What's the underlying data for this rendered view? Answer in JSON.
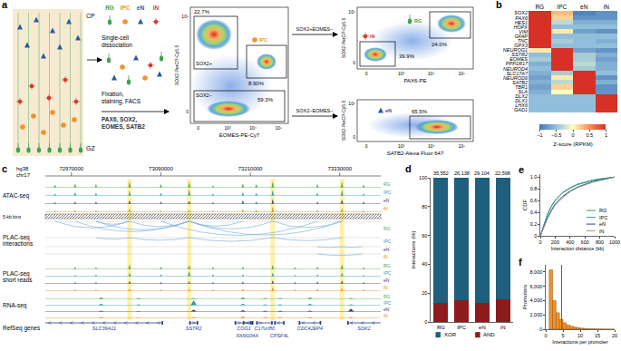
{
  "panel_a": {
    "letter": "a",
    "tissue_labels": [
      "CP",
      "GZ"
    ],
    "cell_types": [
      {
        "name": "RG",
        "color": "#3fa34d"
      },
      {
        "name": "IPC",
        "color": "#f0932b"
      },
      {
        "name": "eN",
        "color": "#2c5aa0"
      },
      {
        "name": "iN",
        "color": "#d63a2f"
      }
    ],
    "steps": [
      "Single-cell dissociation",
      "Fixation, staining, FACS",
      "PAX6, SOX2, EOMES, SATB2"
    ],
    "facs": [
      {
        "x_label": "EOMES-PE-Cy7",
        "y_label": "SOX2-PerCP-Cy5.5",
        "xticks": [
          "0",
          "10³",
          "10⁴",
          "10⁵"
        ],
        "yticks": [
          "0",
          "10⁵"
        ],
        "gates": [
          {
            "label": "22.7%",
            "population": "SOX2+"
          },
          {
            "label": "8.90%",
            "cell": "IPC"
          },
          {
            "label": "59.3%",
            "population": "SOX2−"
          }
        ]
      },
      {
        "gating": "SOX2+EOMES−",
        "x_label": "PAX6-PE",
        "y_label": "SOX2-PerCP-Cy5.5",
        "xticks": [
          "0",
          "10³",
          "10⁴",
          "10⁵"
        ],
        "yticks": [
          "0",
          "10⁵"
        ],
        "gates": [
          {
            "label": "24.0%",
            "cell": "RG"
          },
          {
            "label": "39.9%",
            "cell": "iN"
          }
        ]
      },
      {
        "gating": "SOX2−EOMES−",
        "x_label": "SATB2-Alexa Fluor 647",
        "y_label": "SOX2-PerCP-Cy5.5",
        "xticks": [
          "0",
          "10³",
          "10⁴",
          "10⁵"
        ],
        "yticks": [
          "0",
          "10⁵"
        ],
        "gates": [
          {
            "label": "65.5%",
            "cell": "eN"
          }
        ]
      }
    ]
  },
  "panel_c": {
    "letter": "c",
    "genome": "hg38",
    "chrom": "chr17",
    "xlim": [
      72935000,
      73385000
    ],
    "xticks": [
      72970000,
      73090000,
      73210000,
      73330000
    ],
    "cell_types": [
      {
        "name": "RG",
        "color": "#4aa84a"
      },
      {
        "name": "IPC",
        "color": "#2a9db5"
      },
      {
        "name": "eN",
        "color": "#34427e"
      },
      {
        "name": "iN",
        "color": "#e88a2c"
      }
    ],
    "highlights": [
      [
        73045000,
        73051000
      ],
      [
        73125000,
        73131000
      ],
      [
        73237000,
        73243000
      ],
      [
        73330000,
        73336000
      ]
    ],
    "atac": {
      "label": "ATAC-seq",
      "positions": [
        72948000,
        72975000,
        73003000,
        73048000,
        73090000,
        73128000,
        73160000,
        73200000,
        73218000,
        73240000,
        73300000,
        73333000,
        73362000
      ],
      "values": [
        [
          0.4,
          0.6,
          0.5,
          0.9,
          0.5,
          0.8,
          0.3,
          0.6,
          0.5,
          0.9,
          0.5,
          0.9,
          0.4
        ],
        [
          0.3,
          0.5,
          0.4,
          0.7,
          0.4,
          0.9,
          0.3,
          0.5,
          0.4,
          0.8,
          0.4,
          0.8,
          0.3
        ],
        [
          0.2,
          0.3,
          0.3,
          0.5,
          0.3,
          0.4,
          0.2,
          0.5,
          0.3,
          0.7,
          0.3,
          0.6,
          0.3
        ],
        [
          0.2,
          0.3,
          0.2,
          0.5,
          0.2,
          0.3,
          0.2,
          0.4,
          0.3,
          0.8,
          0.3,
          0.6,
          0.2
        ]
      ]
    },
    "bins_label": "5-kb bins",
    "interactions": {
      "label": "PLAC-seq interactions",
      "arcs": [
        [
          [
            72975000,
            73128000
          ],
          [
            73003000,
            73128000
          ],
          [
            73048000,
            73128000
          ],
          [
            73128000,
            73200000
          ],
          [
            73128000,
            73240000
          ],
          [
            73128000,
            73333000
          ],
          [
            72948000,
            73048000
          ],
          [
            73240000,
            73333000
          ],
          [
            73090000,
            73300000
          ],
          [
            73003000,
            73048000
          ]
        ],
        [
          [
            73048000,
            73128000
          ],
          [
            73128000,
            73240000
          ],
          [
            73240000,
            73333000
          ],
          [
            73003000,
            73048000
          ]
        ],
        [
          [
            73300000,
            73333000
          ],
          [
            73333000,
            73360000
          ]
        ],
        [
          [
            73300000,
            73360000
          ]
        ]
      ]
    },
    "short_reads": {
      "label": "PLAC-seq short reads",
      "positions": [
        72975000,
        73003000,
        73048000,
        73090000,
        73128000,
        73160000,
        73200000,
        73240000,
        73270000,
        73300000,
        73333000,
        73362000
      ],
      "values": [
        [
          0.3,
          0.3,
          0.8,
          0.4,
          0.7,
          0.3,
          0.4,
          0.7,
          0.3,
          0.4,
          0.8,
          0.3
        ],
        [
          0.2,
          0.3,
          0.6,
          0.3,
          0.9,
          0.3,
          0.3,
          0.6,
          0.2,
          0.3,
          0.6,
          0.2
        ],
        [
          0.2,
          0.2,
          0.4,
          0.2,
          0.3,
          0.2,
          0.3,
          0.5,
          0.2,
          0.3,
          0.5,
          0.2
        ],
        [
          0.2,
          0.2,
          0.3,
          0.2,
          0.3,
          0.2,
          0.3,
          0.6,
          0.2,
          0.3,
          0.5,
          0.2
        ]
      ]
    },
    "rna": {
      "label": "RNA-seq",
      "positions": [
        73010000,
        73060000,
        73134000,
        73200000,
        73230000,
        73250000,
        73290000,
        73345000
      ],
      "values": [
        [
          0.3,
          0.2,
          0.2,
          0.3,
          0.2,
          0.2,
          0.3,
          0.2
        ],
        [
          0.3,
          0.2,
          1.0,
          0.3,
          0.2,
          0.2,
          0.3,
          0.2
        ],
        [
          0.2,
          0.1,
          0.4,
          0.3,
          0.2,
          0.2,
          0.2,
          0.6
        ],
        [
          0.2,
          0.1,
          0.2,
          0.3,
          0.2,
          0.2,
          0.2,
          0.2
        ]
      ]
    },
    "genes": {
      "label": "RefSeq genes",
      "items": [
        {
          "name": "SLC39A11",
          "start": 72642000,
          "end": 73093000,
          "strand": "-"
        },
        {
          "name": "SSTR2",
          "start": 73128000,
          "end": 73140000,
          "strand": "+"
        },
        {
          "name": "COG1",
          "start": 73189000,
          "end": 73214000,
          "strand": "+"
        },
        {
          "name": "FAM104A",
          "start": 73200000,
          "end": 73212000,
          "strand": "-"
        },
        {
          "name": "C17orf80",
          "start": 73218000,
          "end": 73240000,
          "strand": "+"
        },
        {
          "name": "CPSF4L",
          "start": 73242000,
          "end": 73256000,
          "strand": "-"
        },
        {
          "name": "CDC42EP4",
          "start": 73275000,
          "end": 73305000,
          "strand": "-"
        },
        {
          "name": "SDK2",
          "start": 73340000,
          "end": 73640000,
          "strand": "-"
        }
      ]
    }
  },
  "chart_data": [
    {
      "panel": "b",
      "type": "heatmap",
      "x": [
        "RG",
        "IPC",
        "eN",
        "iN"
      ],
      "y": [
        "SOX2",
        "PAX6",
        "HES1",
        "HOPX",
        "VIM",
        "GFAP",
        "TNC",
        "GPX3",
        "NEUROG1",
        "SSTR2",
        "EOMES",
        "PPP1R17",
        "NEUROD4",
        "SLC17A7",
        "NEUROD6",
        "SATB2",
        "TBR1",
        "SLA",
        "DLX2",
        "DLX1",
        "LHX6",
        "GAD1"
      ],
      "z": [
        [
          1.4,
          0.3,
          -0.9,
          -0.8
        ],
        [
          1.4,
          0.2,
          -0.8,
          -0.8
        ],
        [
          1.5,
          -0.3,
          -0.6,
          -0.6
        ],
        [
          1.5,
          -0.5,
          -0.5,
          -0.5
        ],
        [
          1.4,
          0.1,
          -0.7,
          -0.8
        ],
        [
          1.5,
          -0.5,
          -0.5,
          -0.5
        ],
        [
          1.5,
          -0.4,
          -0.5,
          -0.6
        ],
        [
          1.5,
          -0.5,
          -0.5,
          -0.5
        ],
        [
          0.1,
          1.4,
          -0.7,
          -0.8
        ],
        [
          -0.5,
          1.5,
          -0.4,
          -0.6
        ],
        [
          -0.4,
          1.5,
          -0.4,
          -0.7
        ],
        [
          -0.6,
          1.5,
          -0.3,
          -0.6
        ],
        [
          -0.5,
          1.5,
          -0.4,
          -0.6
        ],
        [
          -0.6,
          -0.4,
          1.5,
          -0.5
        ],
        [
          -0.7,
          0.1,
          1.4,
          -0.8
        ],
        [
          -0.6,
          -0.3,
          1.5,
          -0.6
        ],
        [
          -0.7,
          0.2,
          1.3,
          -0.8
        ],
        [
          -0.6,
          0.0,
          1.4,
          -0.8
        ],
        [
          -0.5,
          -0.5,
          -0.5,
          1.5
        ],
        [
          -0.5,
          -0.5,
          -0.5,
          1.5
        ],
        [
          -0.5,
          -0.5,
          -0.5,
          1.5
        ],
        [
          -0.5,
          -0.5,
          -0.5,
          1.5
        ]
      ],
      "colorbar": {
        "title": "Z-score (RPKM)",
        "range": [
          -1,
          1
        ],
        "ticks": [
          {
            "value": -1,
            "label": "−1"
          },
          {
            "value": -0.5,
            "label": "−0.5"
          },
          0,
          0.5,
          1
        ]
      }
    },
    {
      "panel": "d",
      "type": "bar",
      "stacked": true,
      "categories": [
        "RG",
        "IPC",
        "eN",
        "iN"
      ],
      "series": [
        {
          "name": "AND",
          "color": "#8e1b1b",
          "values": [
            13,
            15,
            13,
            16
          ]
        },
        {
          "name": "XOR",
          "color": "#1e5f7e",
          "values": [
            87,
            85,
            87,
            84
          ]
        }
      ],
      "top_labels": [
        "35,552",
        "26,138",
        "29,104",
        "22,598"
      ],
      "y_label": "Interactions (%)",
      "ylim": [
        0,
        100
      ],
      "yticks": [
        0,
        20,
        40,
        60,
        80,
        100
      ],
      "legend": "bottom"
    },
    {
      "panel": "e",
      "type": "line",
      "x": [
        0,
        50,
        100,
        150,
        200,
        300,
        400,
        500,
        600,
        700,
        800,
        900,
        1000
      ],
      "series": [
        {
          "name": "RG",
          "color": "#3fa34d",
          "values": [
            0,
            0.2,
            0.37,
            0.5,
            0.6,
            0.73,
            0.81,
            0.87,
            0.91,
            0.94,
            0.96,
            0.98,
            1.0
          ]
        },
        {
          "name": "IPC",
          "color": "#27a6a6",
          "values": [
            0,
            0.21,
            0.38,
            0.51,
            0.61,
            0.74,
            0.82,
            0.88,
            0.92,
            0.95,
            0.97,
            0.985,
            1.0
          ]
        },
        {
          "name": "eN",
          "color": "#2b3f7a",
          "values": [
            0,
            0.17,
            0.32,
            0.44,
            0.54,
            0.67,
            0.76,
            0.83,
            0.88,
            0.92,
            0.95,
            0.97,
            1.0
          ]
        },
        {
          "name": "iN",
          "color": "#9a9a9a",
          "values": [
            0,
            0.15,
            0.3,
            0.42,
            0.52,
            0.65,
            0.75,
            0.82,
            0.87,
            0.91,
            0.94,
            0.97,
            1.0
          ]
        }
      ],
      "x_label": "Interaction distance (kb)",
      "y_label": "CDF",
      "xlim": [
        0,
        1000
      ],
      "xticks": [
        0,
        200,
        400,
        600,
        800,
        1000
      ],
      "ylim": [
        0,
        1.05
      ],
      "yticks": [
        0,
        0.2,
        0.4,
        0.6,
        0.8,
        {
          "value": 1,
          "label": "1.0"
        }
      ],
      "legend": "bottom right"
    },
    {
      "panel": "f",
      "type": "histogram",
      "bins": [
        1,
        2,
        3,
        4,
        5,
        6,
        7,
        8,
        9,
        10,
        11,
        12,
        13,
        14,
        15,
        16,
        17,
        18,
        19,
        20
      ],
      "values": [
        8300,
        4000,
        2300,
        1400,
        900,
        600,
        420,
        300,
        210,
        150,
        110,
        80,
        60,
        45,
        33,
        25,
        18,
        13,
        10
      ],
      "color": "#f0932b",
      "vline": 4.6,
      "x_label": "Interactions per promoter",
      "y_label": "Promoters",
      "xlim": [
        0,
        20
      ],
      "xticks": [
        0,
        5,
        10,
        15,
        20
      ],
      "ylim": [
        0,
        9000
      ],
      "yticks": [
        0,
        {
          "value": 2000,
          "label": "2,000"
        },
        {
          "value": 4000,
          "label": "4,000"
        },
        {
          "value": 6000,
          "label": "6,000"
        },
        {
          "value": 8000,
          "label": "8,000"
        }
      ]
    }
  ]
}
